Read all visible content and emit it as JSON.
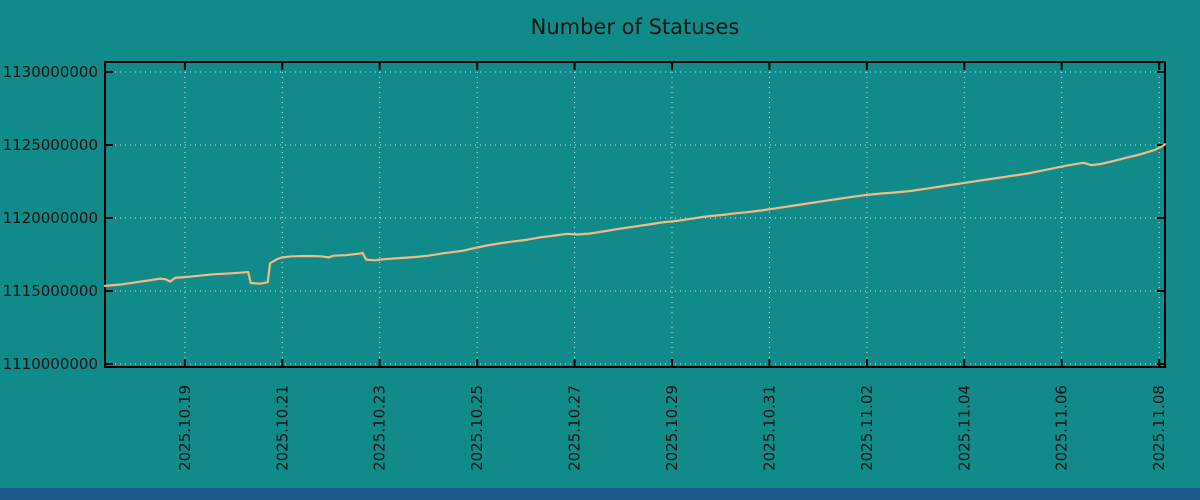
{
  "chart_data": {
    "type": "line",
    "title": "Number of Statuses",
    "xlabel": "",
    "ylabel": "",
    "grid": true,
    "legend": "none",
    "x_range": [
      -1.64,
      20.12
    ],
    "y_range": [
      1110000000,
      1130000000
    ],
    "colors": {
      "background": "#118a8a",
      "line": "#f2bb83",
      "grid": "#dff0f0",
      "border": "#000000",
      "text": "#0c1414",
      "footer_bar": "#1d5c8c"
    },
    "y_ticks": [
      {
        "value": 1110000000,
        "label": "1110000000"
      },
      {
        "value": 1115000000,
        "label": "1115000000"
      },
      {
        "value": 1120000000,
        "label": "1120000000"
      },
      {
        "value": 1125000000,
        "label": "1125000000"
      },
      {
        "value": 1130000000,
        "label": "1130000000"
      }
    ],
    "x_ticks": [
      {
        "day": 0,
        "label": "2025.10.19"
      },
      {
        "day": 2,
        "label": "2025.10.21"
      },
      {
        "day": 4,
        "label": "2025.10.23"
      },
      {
        "day": 6,
        "label": "2025.10.25"
      },
      {
        "day": 8,
        "label": "2025.10.27"
      },
      {
        "day": 10,
        "label": "2025.10.29"
      },
      {
        "day": 12,
        "label": "2025.10.31"
      },
      {
        "day": 14,
        "label": "2025.11.02"
      },
      {
        "day": 16,
        "label": "2025.11.04"
      },
      {
        "day": 18,
        "label": "2025.11.06"
      },
      {
        "day": 20,
        "label": "2025.11.08"
      }
    ],
    "series": [
      {
        "name": "statuses",
        "points": [
          [
            -1.64,
            1115350000
          ],
          [
            -1.3,
            1115450000
          ],
          [
            -1.0,
            1115600000
          ],
          [
            -0.7,
            1115750000
          ],
          [
            -0.5,
            1115850000
          ],
          [
            -0.4,
            1115800000
          ],
          [
            -0.3,
            1115650000
          ],
          [
            -0.2,
            1115900000
          ],
          [
            0.0,
            1115950000
          ],
          [
            0.3,
            1116050000
          ],
          [
            0.6,
            1116150000
          ],
          [
            0.9,
            1116200000
          ],
          [
            1.1,
            1116250000
          ],
          [
            1.3,
            1116300000
          ],
          [
            1.35,
            1115550000
          ],
          [
            1.55,
            1115500000
          ],
          [
            1.7,
            1115600000
          ],
          [
            1.75,
            1116900000
          ],
          [
            1.9,
            1117200000
          ],
          [
            2.0,
            1117300000
          ],
          [
            2.2,
            1117380000
          ],
          [
            2.5,
            1117400000
          ],
          [
            2.8,
            1117380000
          ],
          [
            2.95,
            1117300000
          ],
          [
            3.05,
            1117420000
          ],
          [
            3.3,
            1117450000
          ],
          [
            3.55,
            1117550000
          ],
          [
            3.65,
            1117600000
          ],
          [
            3.72,
            1117150000
          ],
          [
            3.9,
            1117100000
          ],
          [
            4.1,
            1117180000
          ],
          [
            4.4,
            1117250000
          ],
          [
            4.7,
            1117320000
          ],
          [
            5.0,
            1117420000
          ],
          [
            5.3,
            1117580000
          ],
          [
            5.7,
            1117750000
          ],
          [
            6.0,
            1117980000
          ],
          [
            6.3,
            1118180000
          ],
          [
            6.7,
            1118380000
          ],
          [
            7.0,
            1118500000
          ],
          [
            7.3,
            1118680000
          ],
          [
            7.6,
            1118800000
          ],
          [
            7.85,
            1118920000
          ],
          [
            8.05,
            1118870000
          ],
          [
            8.3,
            1118930000
          ],
          [
            8.6,
            1119080000
          ],
          [
            8.9,
            1119250000
          ],
          [
            9.2,
            1119400000
          ],
          [
            9.5,
            1119550000
          ],
          [
            9.8,
            1119700000
          ],
          [
            10.1,
            1119800000
          ],
          [
            10.4,
            1119950000
          ],
          [
            10.7,
            1120100000
          ],
          [
            11.0,
            1120200000
          ],
          [
            11.3,
            1120320000
          ],
          [
            11.6,
            1120420000
          ],
          [
            11.9,
            1120550000
          ],
          [
            12.2,
            1120700000
          ],
          [
            12.5,
            1120850000
          ],
          [
            12.8,
            1121000000
          ],
          [
            13.1,
            1121150000
          ],
          [
            13.4,
            1121300000
          ],
          [
            13.7,
            1121450000
          ],
          [
            14.0,
            1121580000
          ],
          [
            14.3,
            1121680000
          ],
          [
            14.6,
            1121750000
          ],
          [
            14.9,
            1121850000
          ],
          [
            15.2,
            1122000000
          ],
          [
            15.5,
            1122150000
          ],
          [
            15.8,
            1122300000
          ],
          [
            16.1,
            1122450000
          ],
          [
            16.4,
            1122600000
          ],
          [
            16.7,
            1122750000
          ],
          [
            17.0,
            1122900000
          ],
          [
            17.3,
            1123050000
          ],
          [
            17.6,
            1123250000
          ],
          [
            17.9,
            1123450000
          ],
          [
            18.2,
            1123650000
          ],
          [
            18.45,
            1123780000
          ],
          [
            18.6,
            1123620000
          ],
          [
            18.8,
            1123700000
          ],
          [
            19.0,
            1123850000
          ],
          [
            19.3,
            1124100000
          ],
          [
            19.6,
            1124350000
          ],
          [
            19.9,
            1124650000
          ],
          [
            20.05,
            1124900000
          ],
          [
            20.12,
            1125050000
          ]
        ]
      }
    ]
  }
}
